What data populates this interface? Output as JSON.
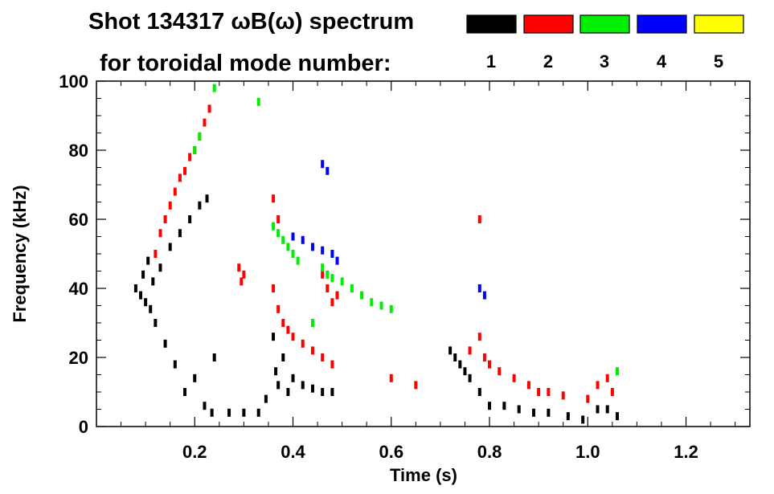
{
  "chart_data": {
    "type": "scatter",
    "title": "Shot 134317 ωB(ω) spectrum",
    "subtitle": "for toroidal mode number:",
    "xlabel": "Time (s)",
    "ylabel": "Frequency (kHz)",
    "xlim": [
      0,
      1.33
    ],
    "ylim": [
      0,
      100
    ],
    "xticks": [
      0.2,
      0.4,
      0.6,
      0.8,
      1.0,
      1.2
    ],
    "xtick_labels": [
      "0.2",
      "0.4",
      "0.6",
      "0.8",
      "1.0",
      "1.2"
    ],
    "yticks": [
      0,
      20,
      40,
      60,
      80,
      100
    ],
    "ytick_labels": [
      "0",
      "20",
      "40",
      "60",
      "80",
      "100"
    ],
    "grid": false,
    "legend_position": "top-right",
    "series": [
      {
        "name": "1",
        "color": "#000000",
        "points": [
          [
            0.08,
            40
          ],
          [
            0.09,
            38
          ],
          [
            0.095,
            44
          ],
          [
            0.1,
            36
          ],
          [
            0.105,
            48
          ],
          [
            0.11,
            34
          ],
          [
            0.115,
            42
          ],
          [
            0.12,
            30
          ],
          [
            0.13,
            46
          ],
          [
            0.14,
            24
          ],
          [
            0.15,
            52
          ],
          [
            0.16,
            18
          ],
          [
            0.17,
            56
          ],
          [
            0.18,
            10
          ],
          [
            0.19,
            60
          ],
          [
            0.2,
            14
          ],
          [
            0.21,
            64
          ],
          [
            0.22,
            6
          ],
          [
            0.225,
            66
          ],
          [
            0.235,
            4
          ],
          [
            0.24,
            20
          ],
          [
            0.27,
            4
          ],
          [
            0.3,
            4
          ],
          [
            0.33,
            4
          ],
          [
            0.345,
            8
          ],
          [
            0.36,
            26
          ],
          [
            0.365,
            16
          ],
          [
            0.37,
            12
          ],
          [
            0.38,
            20
          ],
          [
            0.39,
            10
          ],
          [
            0.4,
            14
          ],
          [
            0.42,
            12
          ],
          [
            0.44,
            11
          ],
          [
            0.46,
            10
          ],
          [
            0.48,
            10
          ],
          [
            0.72,
            22
          ],
          [
            0.73,
            20
          ],
          [
            0.74,
            18
          ],
          [
            0.75,
            16
          ],
          [
            0.76,
            14
          ],
          [
            0.78,
            10
          ],
          [
            0.8,
            6
          ],
          [
            0.83,
            6
          ],
          [
            0.86,
            5
          ],
          [
            0.89,
            4
          ],
          [
            0.92,
            4
          ],
          [
            0.96,
            3
          ],
          [
            0.99,
            2
          ],
          [
            1.02,
            5
          ],
          [
            1.04,
            5
          ],
          [
            1.06,
            3
          ]
        ]
      },
      {
        "name": "2",
        "color": "#ff0000",
        "points": [
          [
            0.12,
            50
          ],
          [
            0.13,
            56
          ],
          [
            0.14,
            60
          ],
          [
            0.15,
            64
          ],
          [
            0.16,
            68
          ],
          [
            0.17,
            72
          ],
          [
            0.18,
            74
          ],
          [
            0.19,
            78
          ],
          [
            0.2,
            80
          ],
          [
            0.21,
            84
          ],
          [
            0.22,
            88
          ],
          [
            0.23,
            92
          ],
          [
            0.29,
            46
          ],
          [
            0.295,
            42
          ],
          [
            0.3,
            44
          ],
          [
            0.36,
            40
          ],
          [
            0.37,
            34
          ],
          [
            0.38,
            30
          ],
          [
            0.39,
            28
          ],
          [
            0.4,
            26
          ],
          [
            0.42,
            24
          ],
          [
            0.44,
            22
          ],
          [
            0.46,
            20
          ],
          [
            0.48,
            18
          ],
          [
            0.46,
            44
          ],
          [
            0.47,
            40
          ],
          [
            0.48,
            36
          ],
          [
            0.49,
            38
          ],
          [
            0.36,
            66
          ],
          [
            0.37,
            60
          ],
          [
            0.6,
            14
          ],
          [
            0.65,
            12
          ],
          [
            0.76,
            22
          ],
          [
            0.78,
            26
          ],
          [
            0.79,
            20
          ],
          [
            0.8,
            18
          ],
          [
            0.82,
            16
          ],
          [
            0.85,
            14
          ],
          [
            0.88,
            12
          ],
          [
            0.9,
            10
          ],
          [
            0.92,
            10
          ],
          [
            0.95,
            9
          ],
          [
            1.0,
            8
          ],
          [
            1.02,
            12
          ],
          [
            1.04,
            14
          ],
          [
            1.05,
            10
          ],
          [
            0.78,
            60
          ]
        ]
      },
      {
        "name": "3",
        "color": "#00ee00",
        "points": [
          [
            0.2,
            80
          ],
          [
            0.21,
            84
          ],
          [
            0.24,
            98
          ],
          [
            0.33,
            94
          ],
          [
            0.36,
            58
          ],
          [
            0.37,
            56
          ],
          [
            0.38,
            54
          ],
          [
            0.39,
            52
          ],
          [
            0.4,
            50
          ],
          [
            0.41,
            48
          ],
          [
            0.46,
            46
          ],
          [
            0.47,
            44
          ],
          [
            0.48,
            43
          ],
          [
            0.5,
            42
          ],
          [
            0.52,
            40
          ],
          [
            0.54,
            38
          ],
          [
            0.56,
            36
          ],
          [
            0.58,
            35
          ],
          [
            0.6,
            34
          ],
          [
            0.44,
            30
          ],
          [
            1.06,
            16
          ]
        ]
      },
      {
        "name": "4",
        "color": "#0000ff",
        "points": [
          [
            0.46,
            76
          ],
          [
            0.47,
            74
          ],
          [
            0.4,
            55
          ],
          [
            0.42,
            54
          ],
          [
            0.44,
            52
          ],
          [
            0.46,
            51
          ],
          [
            0.48,
            50
          ],
          [
            0.49,
            48
          ],
          [
            0.78,
            40
          ],
          [
            0.79,
            38
          ]
        ]
      },
      {
        "name": "5",
        "color": "#ffff00",
        "points": []
      }
    ]
  }
}
